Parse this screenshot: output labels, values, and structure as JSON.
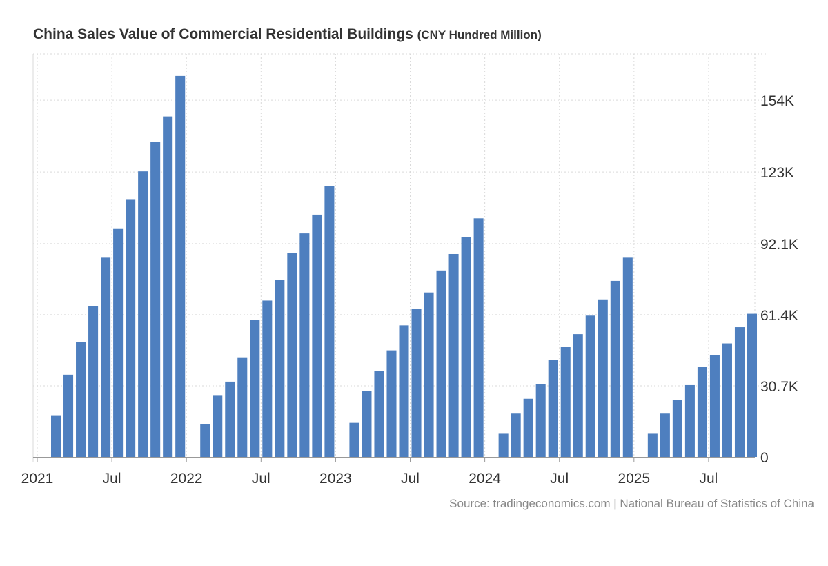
{
  "title": "China Sales Value of Commercial Residential Buildings",
  "unit": "(CNY Hundred Million)",
  "source": "Source: tradingeconomics.com | National Bureau of Statistics of China",
  "colors": {
    "bar": "#4e7fbf",
    "grid": "#d9d9d9",
    "axis": "#999999",
    "text": "#333333"
  },
  "chart_data": {
    "type": "bar",
    "title": "China Sales Value of Commercial Residential Buildings (CNY Hundred Million)",
    "xlabel": "",
    "ylabel": "",
    "ylim": [
      0,
      174000
    ],
    "y_ticks": [
      {
        "value": 0,
        "label": "0"
      },
      {
        "value": 30700,
        "label": "30.7K"
      },
      {
        "value": 61400,
        "label": "61.4K"
      },
      {
        "value": 92100,
        "label": "92.1K"
      },
      {
        "value": 123000,
        "label": "123K"
      },
      {
        "value": 154000,
        "label": "154K"
      }
    ],
    "x_ticks": [
      {
        "label": "2021",
        "month_index": 0
      },
      {
        "label": "Jul",
        "month_index": 6
      },
      {
        "label": "2022",
        "month_index": 12
      },
      {
        "label": "Jul",
        "month_index": 18
      },
      {
        "label": "2023",
        "month_index": 24
      },
      {
        "label": "Jul",
        "month_index": 30
      },
      {
        "label": "2024",
        "month_index": 36
      },
      {
        "label": "Jul",
        "month_index": 42
      },
      {
        "label": "2025",
        "month_index": 48
      },
      {
        "label": "Jul",
        "month_index": 54
      }
    ],
    "categories": [
      "2021-02",
      "2021-03",
      "2021-04",
      "2021-05",
      "2021-06",
      "2021-07",
      "2021-08",
      "2021-09",
      "2021-10",
      "2021-11",
      "2021-12",
      "2022-02",
      "2022-03",
      "2022-04",
      "2022-05",
      "2022-06",
      "2022-07",
      "2022-08",
      "2022-09",
      "2022-10",
      "2022-11",
      "2022-12",
      "2023-02",
      "2023-03",
      "2023-04",
      "2023-05",
      "2023-06",
      "2023-07",
      "2023-08",
      "2023-09",
      "2023-10",
      "2023-11",
      "2023-12",
      "2024-02",
      "2024-03",
      "2024-04",
      "2024-05",
      "2024-06",
      "2024-07",
      "2024-08",
      "2024-09",
      "2024-10",
      "2024-11",
      "2024-12",
      "2025-02",
      "2025-03",
      "2025-04",
      "2025-05",
      "2025-06",
      "2025-07",
      "2025-08",
      "2025-09",
      "2025-10"
    ],
    "month_index": [
      1,
      2,
      3,
      4,
      5,
      6,
      7,
      8,
      9,
      10,
      11,
      13,
      14,
      15,
      16,
      17,
      18,
      19,
      20,
      21,
      22,
      23,
      25,
      26,
      27,
      28,
      29,
      30,
      31,
      32,
      33,
      34,
      35,
      37,
      38,
      39,
      40,
      41,
      42,
      43,
      44,
      45,
      46,
      47,
      49,
      50,
      51,
      52,
      53,
      54,
      55,
      56,
      57
    ],
    "values": [
      18000,
      35500,
      49500,
      65000,
      86000,
      98400,
      111000,
      123300,
      136000,
      147000,
      164500,
      14000,
      26700,
      32500,
      43000,
      59000,
      67500,
      76500,
      88000,
      96500,
      104600,
      117000,
      14700,
      28500,
      37000,
      46000,
      56800,
      64000,
      71000,
      80500,
      87600,
      95000,
      103000,
      10000,
      18700,
      25100,
      31300,
      42000,
      47500,
      53000,
      61000,
      68000,
      76000,
      86000,
      10000,
      18700,
      24500,
      31000,
      39000,
      44000,
      49000,
      56000,
      61800
    ]
  }
}
